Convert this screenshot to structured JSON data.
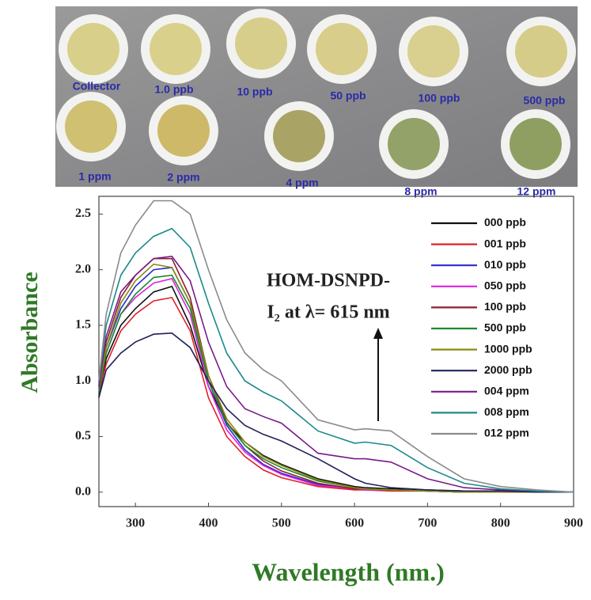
{
  "photo": {
    "labels": [
      "Collector",
      "1.0 ppb",
      "10 ppb",
      "50 ppb",
      "100 ppb",
      "500 ppb",
      "1 ppm",
      "2 ppm",
      "4 ppm",
      "8 ppm",
      "12 ppm"
    ]
  },
  "chart_data": {
    "type": "line",
    "x_label": "Wavelength (nm.)",
    "y_label": "Absorbance",
    "annotation": [
      "HOM-DSNPD-",
      "I₂ at λ= 615 nm"
    ],
    "x": [
      250,
      260,
      280,
      300,
      325,
      350,
      375,
      400,
      425,
      450,
      475,
      500,
      550,
      600,
      615,
      650,
      700,
      750,
      800,
      850,
      900
    ],
    "xlim": [
      250,
      900
    ],
    "xticks": [
      300,
      400,
      500,
      600,
      700,
      800,
      900
    ],
    "ylim": [
      -0.13,
      2.66
    ],
    "yticks": [
      {
        "value": 0,
        "label": "0.0"
      },
      0.5,
      {
        "value": 1,
        "label": "1.0"
      },
      1.5,
      {
        "value": 2,
        "label": "2.0"
      },
      2.5
    ],
    "grid": false,
    "legend": "upper right",
    "series": [
      {
        "name": "000 ppb",
        "color": "#111111",
        "values": [
          0.85,
          1.2,
          1.5,
          1.65,
          1.8,
          1.85,
          1.5,
          0.95,
          0.62,
          0.45,
          0.33,
          0.25,
          0.12,
          0.05,
          0.04,
          0.03,
          0.02,
          0.01,
          0.01,
          0,
          0
        ]
      },
      {
        "name": "001 ppb",
        "color": "#e0202a",
        "values": [
          0.9,
          1.15,
          1.45,
          1.6,
          1.72,
          1.75,
          1.45,
          0.85,
          0.5,
          0.32,
          0.2,
          0.13,
          0.05,
          0.02,
          0.02,
          0.01,
          0.01,
          0,
          0,
          0,
          0
        ]
      },
      {
        "name": "010 ppb",
        "color": "#2a2ad0",
        "values": [
          0.95,
          1.3,
          1.65,
          1.85,
          2,
          2.02,
          1.7,
          1,
          0.6,
          0.38,
          0.25,
          0.17,
          0.07,
          0.03,
          0.02,
          0.02,
          0.01,
          0,
          0,
          0,
          0
        ]
      },
      {
        "name": "050 ppb",
        "color": "#e020e0",
        "values": [
          0.9,
          1.25,
          1.6,
          1.75,
          1.88,
          1.92,
          1.6,
          0.95,
          0.56,
          0.36,
          0.24,
          0.16,
          0.06,
          0.03,
          0.02,
          0.02,
          0.01,
          0,
          0,
          0,
          0
        ]
      },
      {
        "name": "100 ppb",
        "color": "#8a2030",
        "values": [
          0.95,
          1.35,
          1.75,
          1.95,
          2.1,
          2.1,
          1.75,
          1.05,
          0.63,
          0.42,
          0.28,
          0.19,
          0.08,
          0.03,
          0.03,
          0.02,
          0.01,
          0,
          0,
          0,
          0
        ]
      },
      {
        "name": "500 ppb",
        "color": "#1a8a2a",
        "values": [
          0.9,
          1.25,
          1.6,
          1.78,
          1.93,
          1.95,
          1.65,
          1,
          0.62,
          0.42,
          0.3,
          0.22,
          0.1,
          0.04,
          0.03,
          0.02,
          0.01,
          0,
          0,
          0,
          0
        ]
      },
      {
        "name": "1000 ppb",
        "color": "#8a8a10",
        "values": [
          0.95,
          1.3,
          1.7,
          1.9,
          2.05,
          2.02,
          1.7,
          1.05,
          0.66,
          0.45,
          0.32,
          0.24,
          0.11,
          0.04,
          0.03,
          0.02,
          0.01,
          0,
          0,
          0,
          0
        ]
      },
      {
        "name": "2000 ppb",
        "color": "#20205a",
        "values": [
          0.85,
          1.1,
          1.25,
          1.35,
          1.42,
          1.43,
          1.3,
          1,
          0.75,
          0.6,
          0.52,
          0.46,
          0.3,
          0.12,
          0.08,
          0.04,
          0.02,
          0.01,
          0.01,
          0,
          0
        ]
      },
      {
        "name": "004 ppm",
        "color": "#7a1a8a",
        "values": [
          0.95,
          1.4,
          1.8,
          1.95,
          2.1,
          2.12,
          1.9,
          1.35,
          0.95,
          0.75,
          0.68,
          0.62,
          0.35,
          0.3,
          0.3,
          0.27,
          0.12,
          0.04,
          0.02,
          0.01,
          0
        ]
      },
      {
        "name": "008 ppm",
        "color": "#1a8a8a",
        "values": [
          1,
          1.5,
          1.95,
          2.15,
          2.3,
          2.37,
          2.2,
          1.7,
          1.25,
          1,
          0.9,
          0.82,
          0.55,
          0.44,
          0.45,
          0.42,
          0.22,
          0.08,
          0.03,
          0.01,
          0
        ]
      },
      {
        "name": "012 ppm",
        "color": "#8a8a8a",
        "values": [
          1,
          1.6,
          2.15,
          2.4,
          2.62,
          2.62,
          2.5,
          2,
          1.55,
          1.25,
          1.1,
          1,
          0.65,
          0.56,
          0.57,
          0.55,
          0.32,
          0.12,
          0.05,
          0.02,
          0
        ]
      }
    ]
  }
}
